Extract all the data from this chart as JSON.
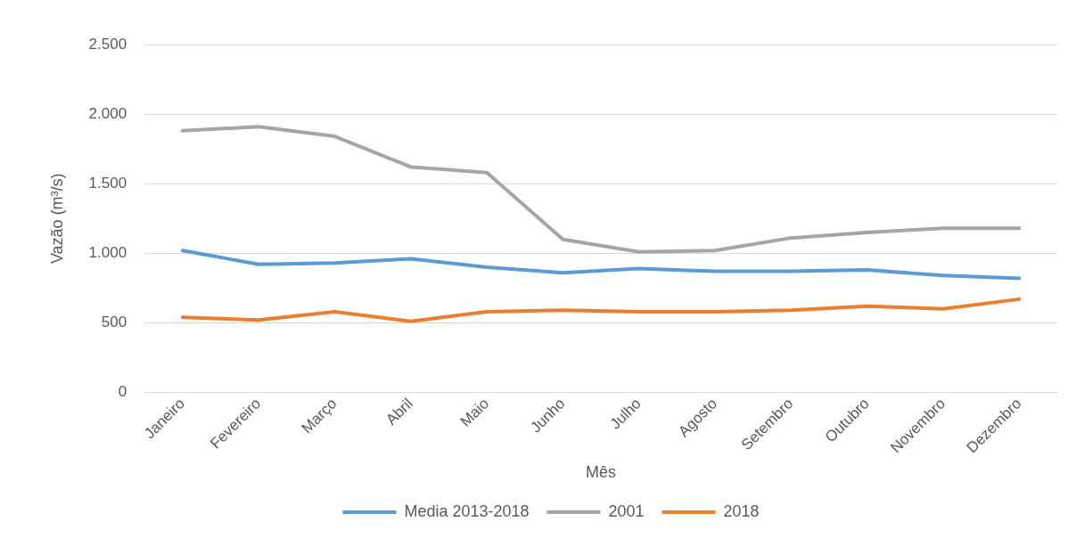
{
  "chart_data": {
    "type": "line",
    "xlabel": "Mês",
    "ylabel": "Vazão (m³/s)",
    "categories": [
      "Janeiro",
      "Fevereiro",
      "Março",
      "Abril",
      "Maio",
      "Junho",
      "Julho",
      "Agosto",
      "Setembro",
      "Outubro",
      "Novembro",
      "Dezembro"
    ],
    "series": [
      {
        "name": "Media 2013-2018",
        "color": "#5b9bd5",
        "values": [
          1020,
          920,
          930,
          960,
          900,
          860,
          890,
          870,
          870,
          880,
          840,
          820
        ]
      },
      {
        "name": "2001",
        "color": "#a5a5a5",
        "values": [
          1880,
          1910,
          1840,
          1620,
          1580,
          1100,
          1010,
          1020,
          1110,
          1150,
          1180,
          1180
        ]
      },
      {
        "name": "2018",
        "color": "#ed7d31",
        "values": [
          540,
          520,
          580,
          510,
          580,
          590,
          580,
          580,
          590,
          620,
          600,
          670
        ]
      }
    ],
    "ylim": [
      0,
      2500
    ],
    "yticks": [
      {
        "value": 0,
        "label": "0"
      },
      {
        "value": 500,
        "label": "500"
      },
      {
        "value": 1000,
        "label": "1.000"
      },
      {
        "value": 1500,
        "label": "1.500"
      },
      {
        "value": 2000,
        "label": "2.000"
      },
      {
        "value": 2500,
        "label": "2.500"
      }
    ],
    "grid": "y",
    "legend": "bottom",
    "marker": "none",
    "line_style": "solid"
  }
}
